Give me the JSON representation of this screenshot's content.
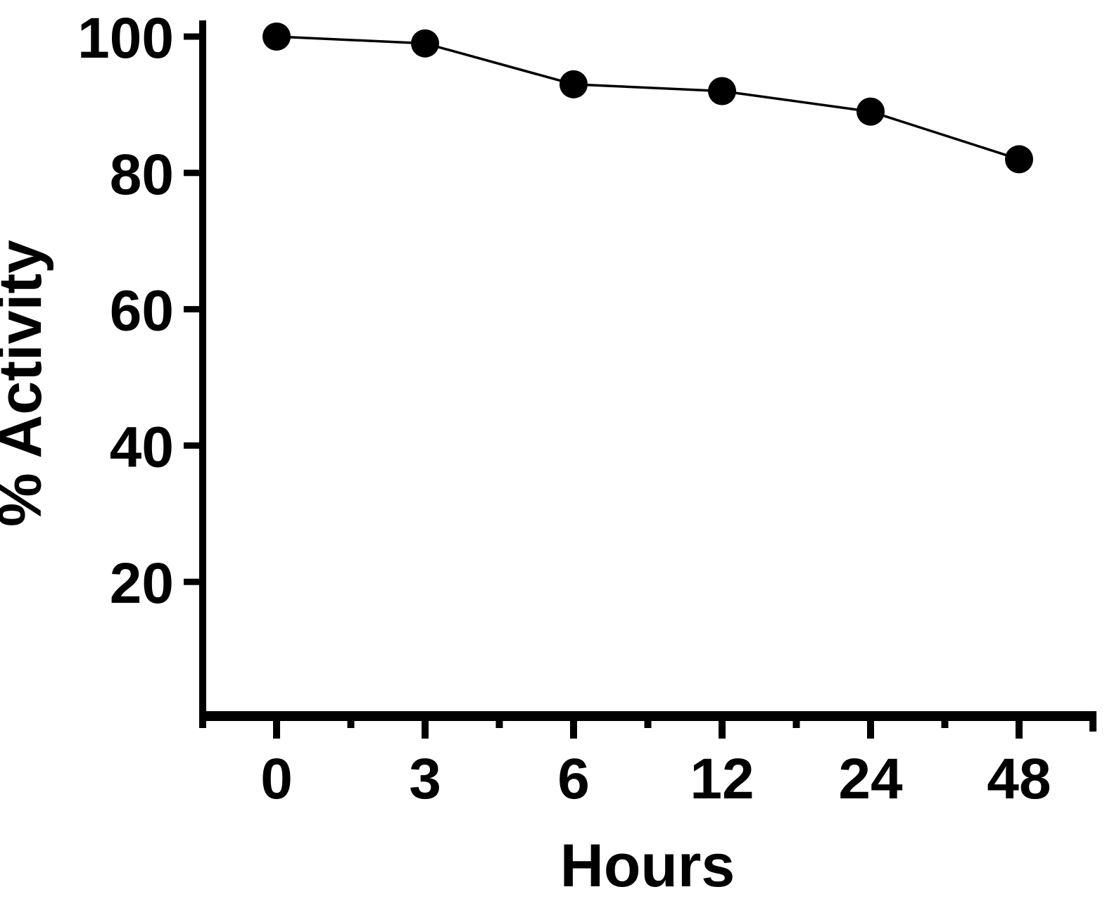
{
  "chart_data": {
    "type": "line",
    "title": "",
    "xlabel": "Hours",
    "ylabel": "% Activity",
    "categories": [
      "0",
      "3",
      "6",
      "12",
      "24",
      "48"
    ],
    "series": [
      {
        "name": "% Activity",
        "values": [
          100,
          99,
          93,
          92,
          89,
          82
        ]
      }
    ],
    "x_tick_labels": [
      "0",
      "3",
      "6",
      "12",
      "24",
      "48"
    ],
    "y_tick_labels": [
      "100",
      "80",
      "60",
      "40",
      "20"
    ],
    "y_tick_values": [
      100,
      80,
      60,
      40,
      20
    ],
    "ylim": [
      0,
      105
    ],
    "grid": false,
    "legend": "none",
    "marker": "filled-circle",
    "colors": {
      "line": "#000000",
      "marker": "#000000",
      "axis": "#000000",
      "text": "#000000",
      "background": "#ffffff"
    }
  }
}
